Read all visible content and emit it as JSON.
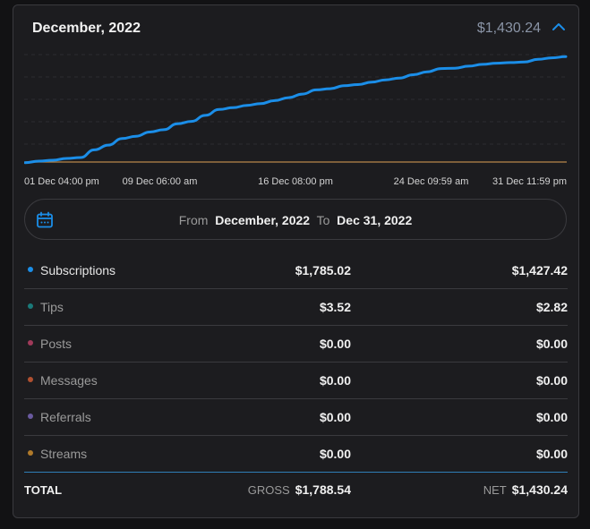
{
  "header": {
    "title": "December, 2022",
    "total": "$1,430.24",
    "collapse_icon": "chevron-up-icon"
  },
  "chart_data": {
    "type": "line",
    "title": "",
    "xlabel": "",
    "ylabel": "",
    "x_tick_labels": [
      "01 Dec 04:00 pm",
      "09 Dec 06:00 am",
      "16 Dec 08:00 pm",
      "24 Dec 09:59 am",
      "31 Dec 11:59 pm"
    ],
    "grid": true,
    "legend": "none",
    "colors": {
      "series": "#1b8ee8",
      "baseline": "#b8874a"
    },
    "series": [
      {
        "values": [
          5,
          30,
          45,
          75,
          90,
          220,
          300,
          410,
          450,
          520,
          560,
          660,
          700,
          800,
          900,
          930,
          970,
          1000,
          1050,
          1100,
          1160,
          1230,
          1250,
          1300,
          1320,
          1360,
          1400,
          1430,
          1485,
          1535,
          1590,
          1595,
          1630,
          1660,
          1680,
          1690,
          1700,
          1745,
          1770,
          1790
        ]
      }
    ],
    "ylim": [
      0,
      1900
    ]
  },
  "date_range": {
    "from_label": "From",
    "from_value": "December, 2022",
    "to_label": "To",
    "to_value": "Dec 31, 2022",
    "icon": "calendar-icon"
  },
  "rows": [
    {
      "label": "Subscriptions",
      "gross": "$1,785.02",
      "net": "$1,427.42",
      "dot": "#1b8ee8",
      "label_color": "#e6e6e6"
    },
    {
      "label": "Tips",
      "gross": "$3.52",
      "net": "$2.82",
      "dot": "#1a7a7a",
      "label_color": "#9a9a9a"
    },
    {
      "label": "Posts",
      "gross": "$0.00",
      "net": "$0.00",
      "dot": "#a03a5a",
      "label_color": "#9a9a9a"
    },
    {
      "label": "Messages",
      "gross": "$0.00",
      "net": "$0.00",
      "dot": "#b05030",
      "label_color": "#9a9a9a"
    },
    {
      "label": "Referrals",
      "gross": "$0.00",
      "net": "$0.00",
      "dot": "#6a5aa0",
      "label_color": "#9a9a9a"
    },
    {
      "label": "Streams",
      "gross": "$0.00",
      "net": "$0.00",
      "dot": "#b07a2a",
      "label_color": "#9a9a9a"
    }
  ],
  "totals": {
    "label": "TOTAL",
    "gross_label": "GROSS",
    "gross_value": "$1,788.54",
    "net_label": "NET",
    "net_value": "$1,430.24"
  }
}
